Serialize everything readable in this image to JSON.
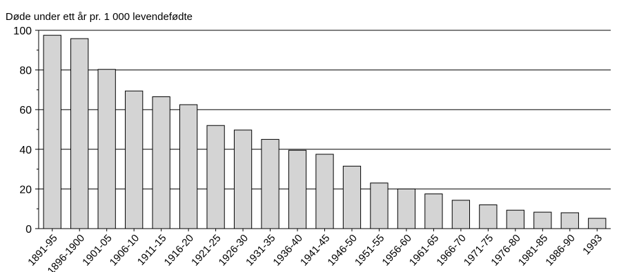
{
  "chart_data": {
    "type": "bar",
    "title": "",
    "ylabel": "Døde under ett år pr. 1 000 levendefødte",
    "xlabel": "",
    "ylim": [
      0,
      100
    ],
    "yticks": [
      0,
      20,
      40,
      60,
      80,
      100
    ],
    "grid": true,
    "bar_color": "#d4d4d4",
    "categories": [
      "1891-95",
      "1896-1900",
      "1901-05",
      "1906-10",
      "1911-15",
      "1916-20",
      "1921-25",
      "1926-30",
      "1931-35",
      "1936-40",
      "1941-45",
      "1946-50",
      "1951-55",
      "1956-60",
      "1961-65",
      "1966-70",
      "1971-75",
      "1976-80",
      "1981-85",
      "1986-90",
      "1993"
    ],
    "values": [
      97.5,
      95.8,
      80.3,
      69.4,
      66.5,
      62.5,
      52.0,
      49.7,
      45.0,
      39.5,
      37.5,
      31.5,
      23.0,
      20.0,
      17.5,
      14.3,
      12.0,
      9.3,
      8.3,
      8.0,
      5.2
    ]
  }
}
